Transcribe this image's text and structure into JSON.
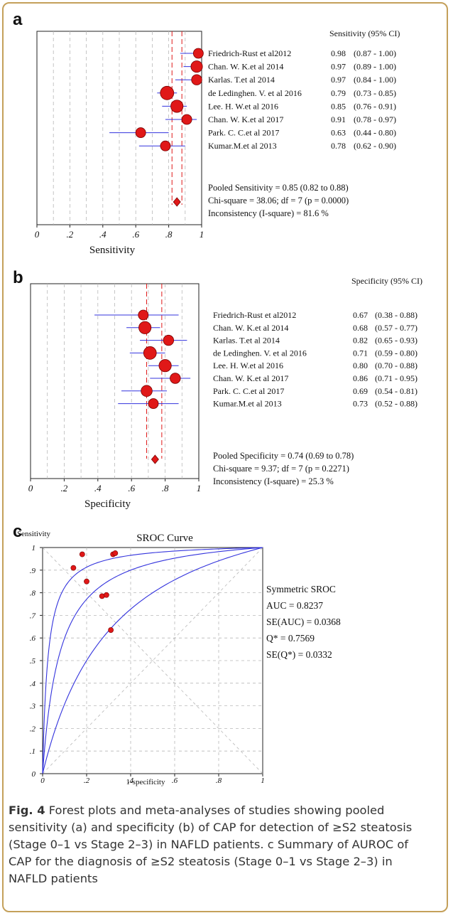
{
  "caption": {
    "label": "Fig. 4",
    "text": "Forest plots and meta-analyses of studies showing pooled sensitivity (a) and specificity (b) of CAP for detection of ≥S2 steatosis (Stage 0–1 vs Stage 2–3) in NAFLD patients. c Summary of AUROC of CAP for the diagnosis of ≥S2 steatosis (Stage 0–1 vs Stage 2–3) in NAFLD patients"
  },
  "colors": {
    "marker": "#e01818",
    "ci_line": "#3333dd",
    "pooled_line": "#e01818",
    "grid": "#b8b8b8",
    "frame_border": "#c4a05a"
  },
  "chart_data": [
    {
      "panel": "a",
      "type": "scatter",
      "subtype": "forest",
      "column_header": "Sensitivity (95% CI)",
      "xlabel": "Sensitivity",
      "xlim": [
        0,
        1
      ],
      "x_ticks": [
        "0",
        ".2",
        ".4",
        ".6",
        ".8",
        "1"
      ],
      "grid": true,
      "studies": [
        {
          "label": "Friedrich-Rust et al2012",
          "estimate": 0.98,
          "ci_low": 0.87,
          "ci_high": 1.0,
          "estimate_text": "0.98",
          "ci_text": "(0.87 - 1.00)",
          "weight": 0.55
        },
        {
          "label": "Chan. W. K.et al 2014",
          "estimate": 0.97,
          "ci_low": 0.89,
          "ci_high": 1.0,
          "estimate_text": "0.97",
          "ci_text": "(0.89 - 1.00)",
          "weight": 0.75
        },
        {
          "label": "Karlas. T.et al 2014",
          "estimate": 0.97,
          "ci_low": 0.84,
          "ci_high": 1.0,
          "estimate_text": "0.97",
          "ci_text": "(0.84 - 1.00)",
          "weight": 0.6
        },
        {
          "label": "de Ledinghen. V. et al 2016",
          "estimate": 0.79,
          "ci_low": 0.73,
          "ci_high": 0.85,
          "estimate_text": "0.79",
          "ci_text": "(0.73 - 0.85)",
          "weight": 1.0
        },
        {
          "label": "Lee. H. W.et al 2016",
          "estimate": 0.85,
          "ci_low": 0.76,
          "ci_high": 0.91,
          "estimate_text": "0.85",
          "ci_text": "(0.76 - 0.91)",
          "weight": 0.85
        },
        {
          "label": "Chan. W. K.et al 2017",
          "estimate": 0.91,
          "ci_low": 0.78,
          "ci_high": 0.97,
          "estimate_text": "0.91",
          "ci_text": "(0.78 - 0.97)",
          "weight": 0.55
        },
        {
          "label": "Park. C. C.et al 2017",
          "estimate": 0.63,
          "ci_low": 0.44,
          "ci_high": 0.8,
          "estimate_text": "0.63",
          "ci_text": "(0.44 - 0.80)",
          "weight": 0.55
        },
        {
          "label": "Kumar.M.et al 2013",
          "estimate": 0.78,
          "ci_low": 0.62,
          "ci_high": 0.9,
          "estimate_text": "0.78",
          "ci_text": "(0.62 - 0.90)",
          "weight": 0.55
        }
      ],
      "pooled": {
        "estimate": 0.85,
        "ci_low": 0.82,
        "ci_high": 0.88
      },
      "stats": [
        "Pooled Sensitivity = 0.85 (0.82 to 0.88)",
        "Chi-square = 38.06; df =  7 (p = 0.0000)",
        "Inconsistency (I-square) = 81.6 %"
      ]
    },
    {
      "panel": "b",
      "type": "scatter",
      "subtype": "forest",
      "column_header": "Specificity (95% CI)",
      "xlabel": "Specificity",
      "xlim": [
        0,
        1
      ],
      "x_ticks": [
        "0",
        ".2",
        ".4",
        ".6",
        ".8",
        "1"
      ],
      "grid": true,
      "studies": [
        {
          "label": "Friedrich-Rust et al2012",
          "estimate": 0.67,
          "ci_low": 0.38,
          "ci_high": 0.88,
          "estimate_text": "0.67",
          "ci_text": "(0.38 - 0.88)",
          "weight": 0.55
        },
        {
          "label": "Chan. W. K.et al 2014",
          "estimate": 0.68,
          "ci_low": 0.57,
          "ci_high": 0.77,
          "estimate_text": "0.68",
          "ci_text": "(0.57 - 0.77)",
          "weight": 0.85
        },
        {
          "label": "Karlas. T.et al 2014",
          "estimate": 0.82,
          "ci_low": 0.65,
          "ci_high": 0.93,
          "estimate_text": "0.82",
          "ci_text": "(0.65 - 0.93)",
          "weight": 0.6
        },
        {
          "label": "de Ledinghen. V. et al 2016",
          "estimate": 0.71,
          "ci_low": 0.59,
          "ci_high": 0.8,
          "estimate_text": "0.71",
          "ci_text": "(0.59 - 0.80)",
          "weight": 0.9
        },
        {
          "label": "Lee. H. W.et al 2016",
          "estimate": 0.8,
          "ci_low": 0.7,
          "ci_high": 0.88,
          "estimate_text": "0.80",
          "ci_text": "(0.70 - 0.88)",
          "weight": 0.85
        },
        {
          "label": "Chan. W. K.et al 2017",
          "estimate": 0.86,
          "ci_low": 0.71,
          "ci_high": 0.95,
          "estimate_text": "0.86",
          "ci_text": "(0.71 - 0.95)",
          "weight": 0.6
        },
        {
          "label": "Park. C. C.et al 2017",
          "estimate": 0.69,
          "ci_low": 0.54,
          "ci_high": 0.81,
          "estimate_text": "0.69",
          "ci_text": "(0.54 - 0.81)",
          "weight": 0.7
        },
        {
          "label": "Kumar.M.et al 2013",
          "estimate": 0.73,
          "ci_low": 0.52,
          "ci_high": 0.88,
          "estimate_text": "0.73",
          "ci_text": "(0.52 - 0.88)",
          "weight": 0.55
        }
      ],
      "pooled": {
        "estimate": 0.74,
        "ci_low": 0.69,
        "ci_high": 0.78
      },
      "stats": [
        "Pooled Specificity = 0.74 (0.69 to 0.78)",
        "Chi-square = 9.37; df =  7 (p = 0.2271)",
        "Inconsistency (I-square) = 25.3 %"
      ]
    },
    {
      "panel": "c",
      "type": "line",
      "subtype": "sroc",
      "title": "SROC Curve",
      "xlabel": "1-specificity",
      "ylabel": "Sensitivity",
      "xlim": [
        0,
        1
      ],
      "ylim": [
        0,
        1
      ],
      "x_ticks": [
        "0",
        ".2",
        ".4",
        ".6",
        ".8",
        "1"
      ],
      "y_ticks": [
        "0",
        ".1",
        ".2",
        ".3",
        ".4",
        ".5",
        ".6",
        ".7",
        ".8",
        ".9",
        "1"
      ],
      "grid": true,
      "curves_odds_ratios": [
        42,
        13.5,
        4
      ],
      "points": [
        {
          "x": 0.18,
          "y": 0.97
        },
        {
          "x": 0.32,
          "y": 0.97
        },
        {
          "x": 0.33,
          "y": 0.975
        },
        {
          "x": 0.14,
          "y": 0.91
        },
        {
          "x": 0.2,
          "y": 0.85
        },
        {
          "x": 0.27,
          "y": 0.785
        },
        {
          "x": 0.29,
          "y": 0.79
        },
        {
          "x": 0.31,
          "y": 0.635
        }
      ],
      "annotations": [
        "Symmetric SROC",
        "AUC = 0.8237",
        "SE(AUC) = 0.0368",
        "Q* = 0.7569",
        "SE(Q*) = 0.0332"
      ]
    }
  ]
}
